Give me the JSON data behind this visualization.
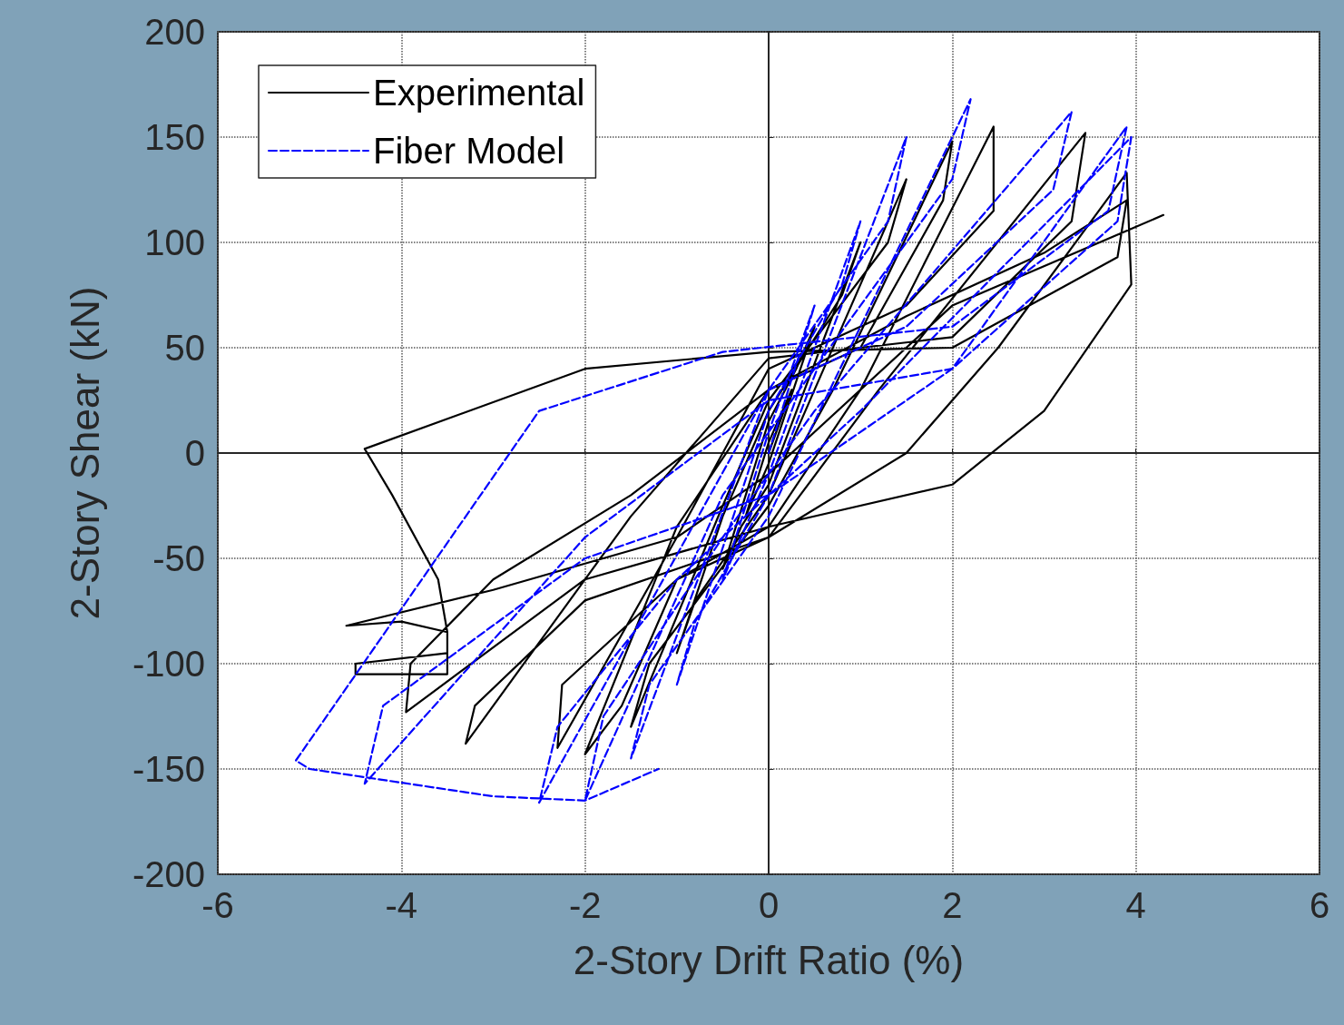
{
  "chart_data": {
    "type": "line",
    "xlabel": "2-Story Drift Ratio (%)",
    "ylabel": "2-Story Shear (kN)",
    "xlim": [
      -6,
      6
    ],
    "xticks": [
      -6,
      -4,
      -2,
      0,
      2,
      4,
      6
    ],
    "ylim": [
      -200,
      200
    ],
    "yticks": [
      -200,
      -150,
      -100,
      -50,
      0,
      50,
      100,
      150,
      200
    ],
    "grid": true,
    "legend": "top left",
    "marker": "none",
    "series": [
      {
        "name": "Experimental",
        "color": "#000000",
        "line_style": "solid",
        "x": [
          0,
          0.25,
          0,
          -0.25,
          0,
          0.5,
          0.3,
          0,
          -0.5,
          -0.3,
          0,
          1,
          0.8,
          0,
          -0.5,
          -1,
          -0.8,
          0,
          0.5,
          1.5,
          1.3,
          0,
          -0.5,
          -1.5,
          -1.3,
          0,
          0.7,
          2,
          1.9,
          1,
          0,
          -1,
          -2,
          -1.6,
          -1,
          0,
          1,
          2.45,
          2.45,
          1.5,
          0,
          -1,
          -2.3,
          -2.25,
          -1,
          0,
          1.2,
          3.45,
          3.3,
          2,
          0,
          -1.5,
          -3.3,
          -3.2,
          -2,
          0,
          1.5,
          2.5,
          3.9,
          3.95,
          3,
          2,
          0,
          -2,
          -3.95,
          -3.9,
          -3,
          -1.5,
          0,
          1.5,
          3,
          3.9,
          3.8,
          2,
          0,
          -2,
          -4.4,
          -4.1,
          -3.6,
          -3.5,
          -3.5,
          -4.5,
          -4.5,
          -3.5,
          -3.5,
          -4,
          -4.6,
          -3,
          -1,
          0,
          2,
          4.3
        ],
        "values": [
          0,
          30,
          5,
          -30,
          -5,
          60,
          40,
          15,
          -55,
          -35,
          -15,
          100,
          75,
          20,
          -30,
          -95,
          -70,
          -20,
          30,
          130,
          100,
          25,
          -25,
          -130,
          -100,
          -25,
          30,
          148,
          120,
          50,
          30,
          -35,
          -143,
          -120,
          -60,
          -35,
          30,
          155,
          115,
          70,
          40,
          -40,
          -140,
          -110,
          -60,
          -40,
          30,
          152,
          110,
          55,
          45,
          -30,
          -138,
          -120,
          -70,
          -40,
          0,
          50,
          133,
          80,
          20,
          -15,
          -35,
          -60,
          -123,
          -100,
          -60,
          -20,
          30,
          65,
          95,
          120,
          93,
          50,
          48,
          40,
          2,
          -20,
          -60,
          -85,
          -105,
          -105,
          -100,
          -95,
          -85,
          -80,
          -82,
          -65,
          -40,
          -10,
          70,
          113
        ]
      },
      {
        "name": "Fiber Model",
        "color": "#0000ff",
        "line_style": "dashed",
        "x": [
          0,
          0.5,
          0,
          -0.5,
          0,
          1,
          0.8,
          0,
          -1,
          -0.8,
          0,
          1.5,
          1.3,
          0,
          -1.5,
          -1.3,
          0,
          2.2,
          2,
          0.5,
          -0.5,
          -2,
          -1.8,
          -0.5,
          0.5,
          3.3,
          3.1,
          1.5,
          0,
          -2.5,
          -2.3,
          -1,
          1,
          3.95,
          3.8,
          2,
          0,
          -2,
          -4.4,
          -4.2,
          -2,
          0,
          2,
          3.9,
          3.7,
          2,
          -0.5,
          -2.5,
          -5.15,
          -5,
          -3,
          -2,
          -1.2
        ],
        "values": [
          0,
          70,
          10,
          -60,
          -10,
          110,
          80,
          20,
          -110,
          -80,
          -20,
          150,
          110,
          30,
          -145,
          -110,
          -30,
          168,
          130,
          40,
          -20,
          -165,
          -125,
          -40,
          20,
          162,
          125,
          60,
          30,
          -166,
          -130,
          -60,
          20,
          150,
          110,
          40,
          25,
          -40,
          -157,
          -120,
          -50,
          -20,
          40,
          155,
          115,
          60,
          48,
          20,
          -146,
          -150,
          -163,
          -165,
          -150
        ]
      }
    ]
  }
}
